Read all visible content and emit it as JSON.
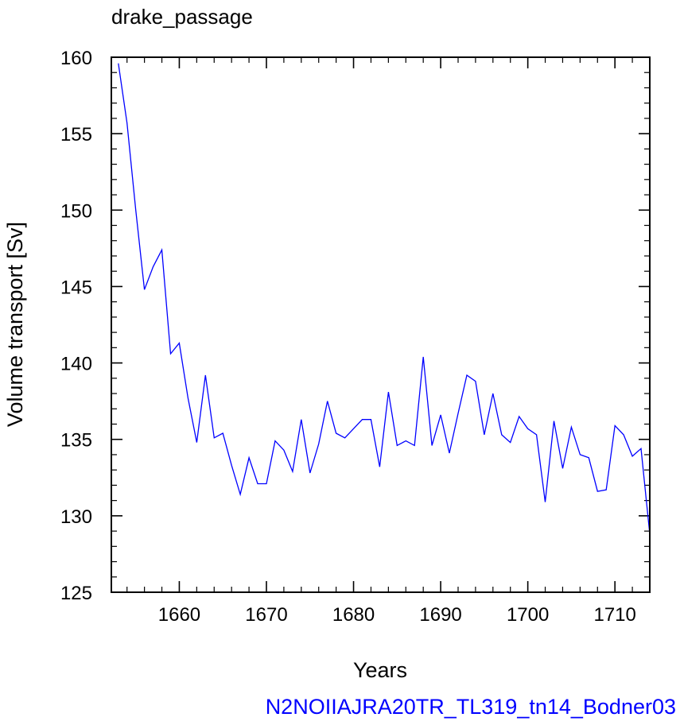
{
  "chart_data": {
    "type": "line",
    "title": "drake_passage",
    "xlabel": "Years",
    "ylabel": "Volume transport [Sv]",
    "xlim": [
      1652.2,
      1714
    ],
    "ylim": [
      125,
      160
    ],
    "xticks": [
      1660,
      1670,
      1680,
      1690,
      1700,
      1710
    ],
    "yticks": [
      125,
      130,
      135,
      140,
      145,
      150,
      155,
      160
    ],
    "grid": false,
    "series": [
      {
        "color": "#0000ff",
        "x": [
          1653,
          1654,
          1655,
          1656,
          1657,
          1658,
          1659,
          1660,
          1661,
          1662,
          1663,
          1664,
          1665,
          1666,
          1667,
          1668,
          1669,
          1670,
          1671,
          1672,
          1673,
          1674,
          1675,
          1676,
          1677,
          1678,
          1679,
          1680,
          1681,
          1682,
          1683,
          1684,
          1685,
          1686,
          1687,
          1688,
          1689,
          1690,
          1691,
          1692,
          1693,
          1694,
          1695,
          1696,
          1697,
          1698,
          1699,
          1700,
          1701,
          1702,
          1703,
          1704,
          1705,
          1706,
          1707,
          1708,
          1709,
          1710,
          1711,
          1712,
          1713,
          1714
        ],
        "y": [
          159.6,
          155.7,
          150.0,
          144.8,
          146.3,
          147.4,
          140.6,
          141.3,
          137.7,
          134.8,
          139.2,
          135.1,
          135.4,
          133.3,
          131.4,
          133.8,
          132.1,
          132.1,
          134.9,
          134.3,
          132.9,
          136.3,
          132.8,
          134.7,
          137.5,
          135.4,
          135.1,
          135.7,
          136.3,
          136.3,
          133.2,
          138.1,
          134.6,
          134.9,
          134.6,
          140.4,
          134.6,
          136.6,
          134.1,
          136.7,
          139.2,
          138.8,
          135.3,
          138.0,
          135.3,
          134.8,
          136.5,
          135.7,
          135.3,
          130.9,
          136.2,
          133.1,
          135.8,
          134.0,
          133.8,
          131.6,
          131.7,
          135.9,
          135.3,
          133.9,
          134.4,
          128.8
        ]
      }
    ]
  },
  "footer": {
    "text": "N2NOIIAJRA20TR_TL319_tn14_Bodner03",
    "color": "#0000ff"
  }
}
